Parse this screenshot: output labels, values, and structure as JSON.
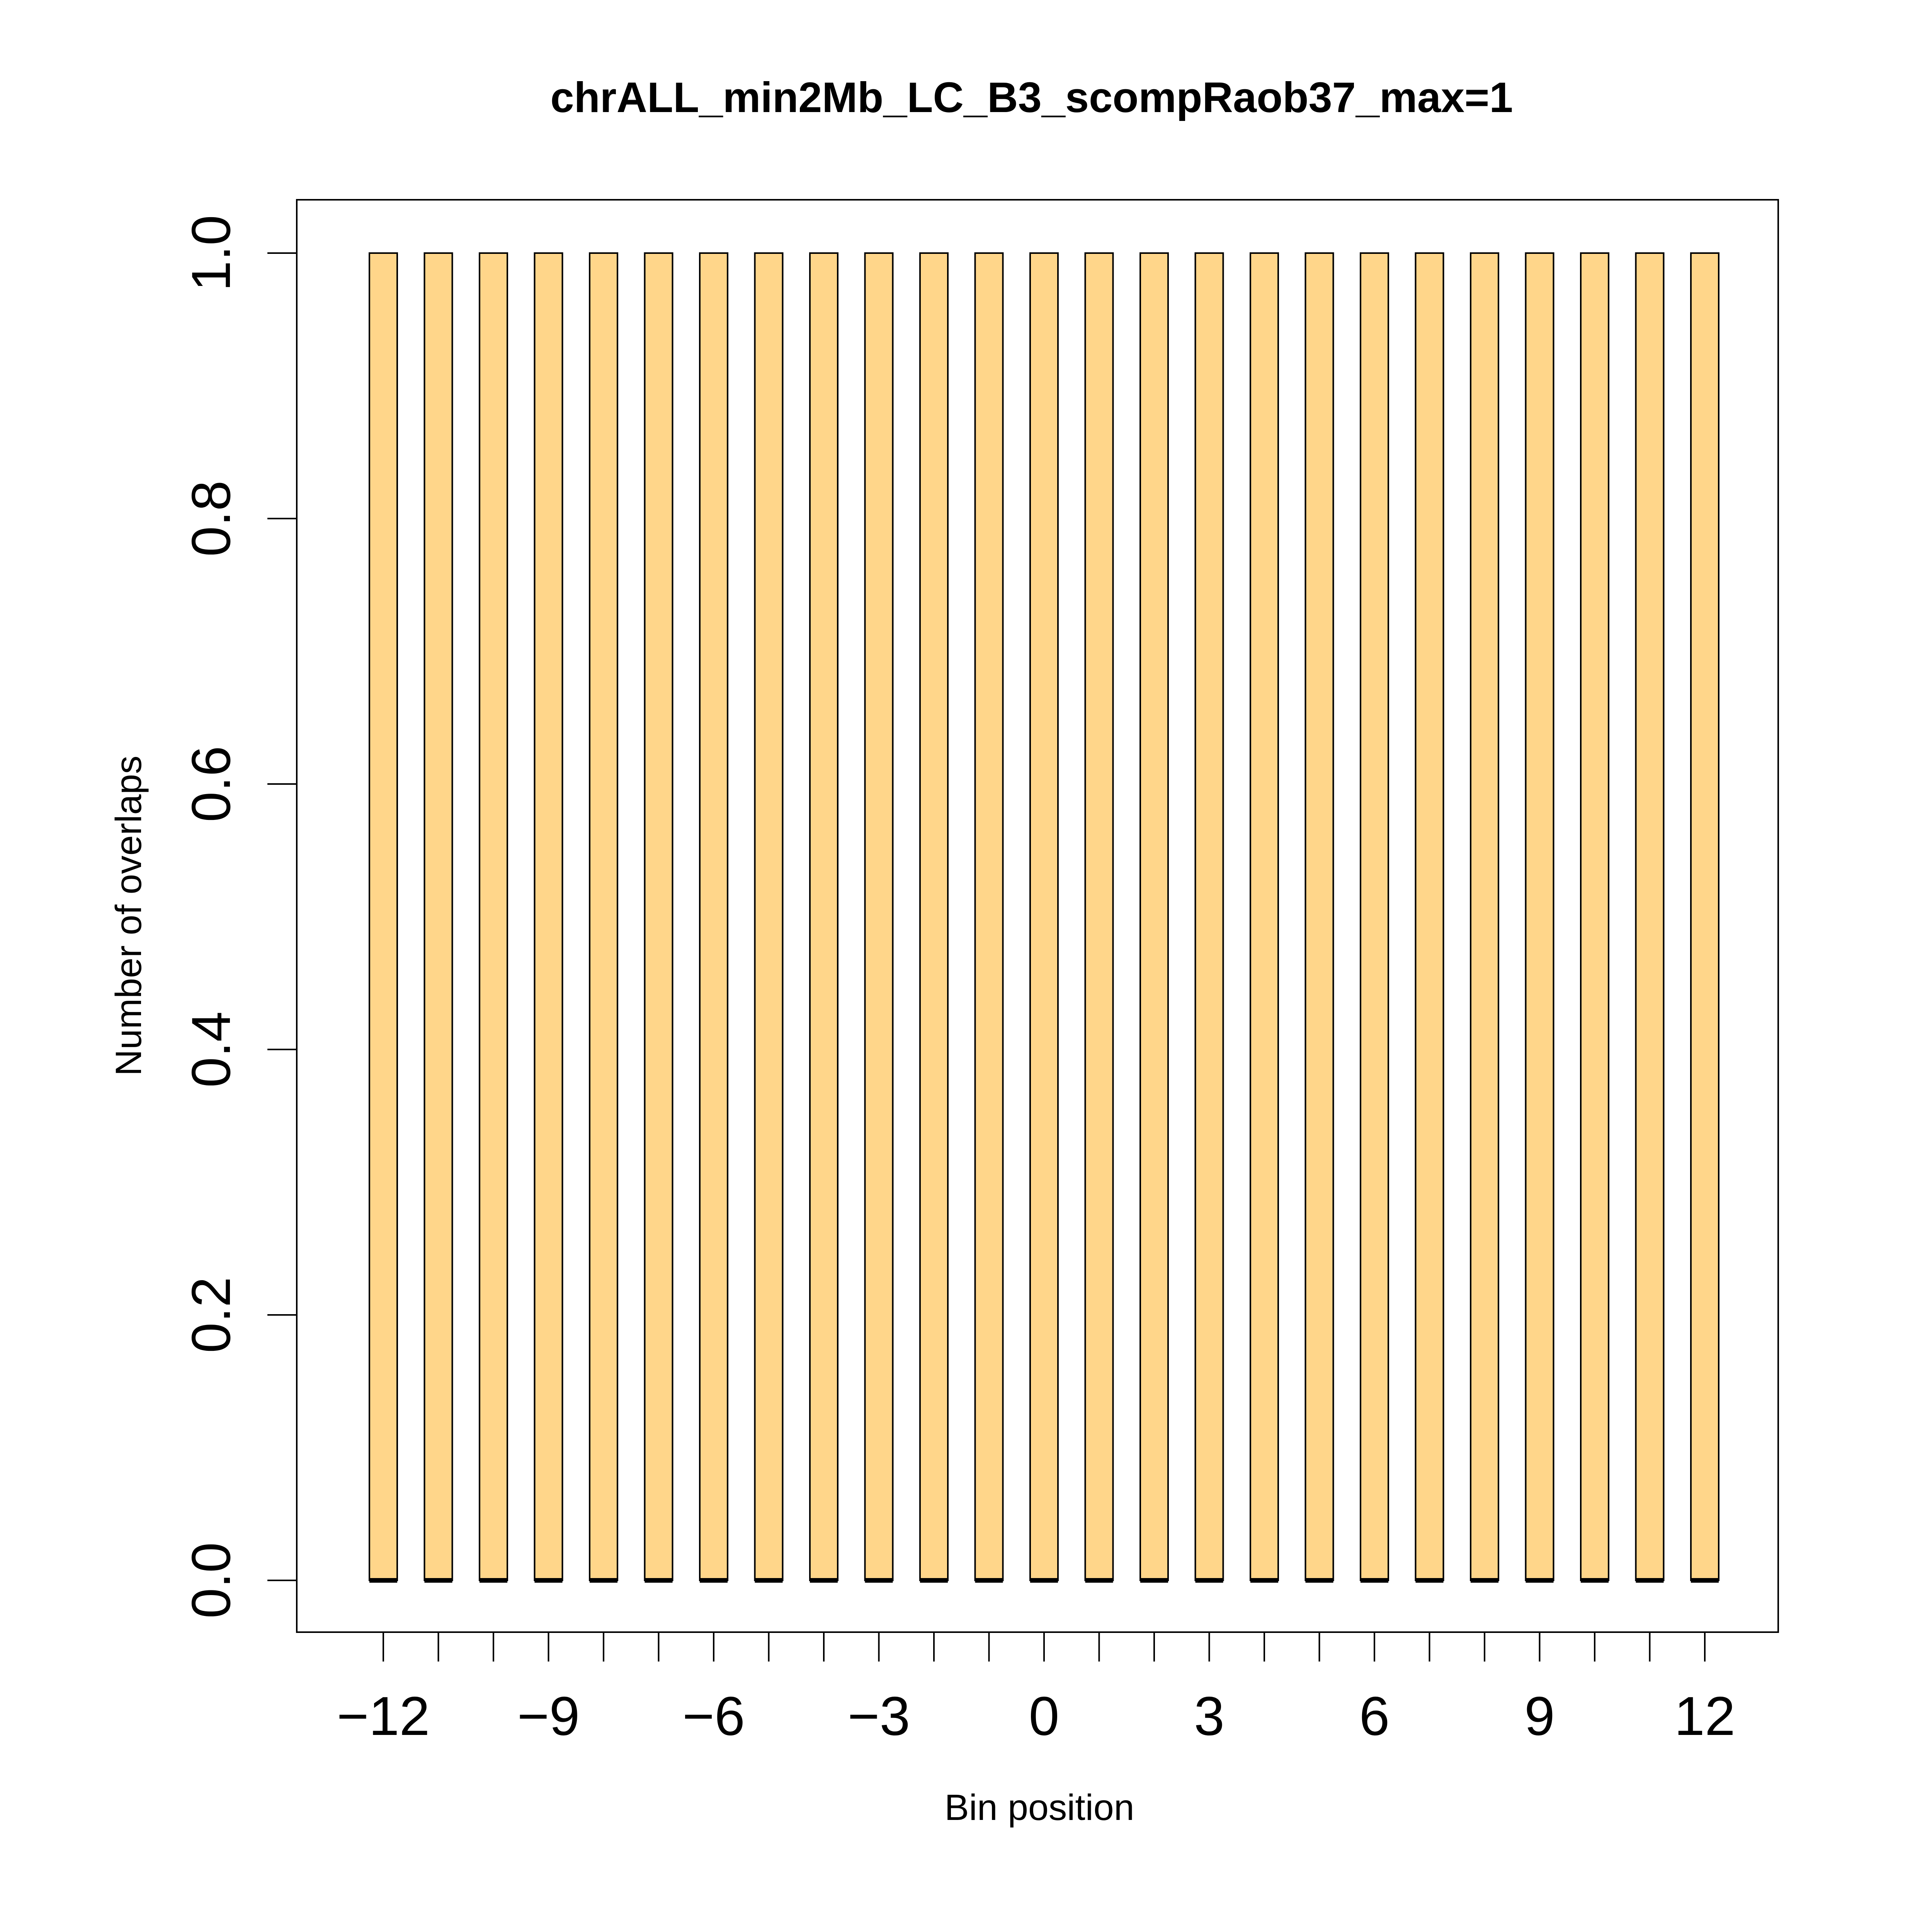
{
  "chart_data": {
    "type": "bar",
    "title": "chrALL_min2Mb_LC_B3_scompRaob37_max=1",
    "xlabel": "Bin position",
    "ylabel": "Number of overlaps",
    "x": [
      -12,
      -11,
      -10,
      -9,
      -8,
      -7,
      -6,
      -5,
      -4,
      -3,
      -2,
      -1,
      0,
      1,
      2,
      3,
      4,
      5,
      6,
      7,
      8,
      9,
      10,
      11,
      12
    ],
    "values": [
      1,
      1,
      1,
      1,
      1,
      1,
      1,
      1,
      1,
      1,
      1,
      1,
      1,
      1,
      1,
      1,
      1,
      1,
      1,
      1,
      1,
      1,
      1,
      1,
      1
    ],
    "ylim": [
      0,
      1
    ],
    "yticks": [
      "0.0",
      "0.2",
      "0.4",
      "0.6",
      "0.8",
      "1.0"
    ],
    "xticks": [
      "−12",
      "−9",
      "−6",
      "−3",
      "0",
      "3",
      "6",
      "9",
      "12"
    ],
    "bar_color": "#FFD68A",
    "edge_color": "#000000",
    "grid": false,
    "legend": "none"
  }
}
